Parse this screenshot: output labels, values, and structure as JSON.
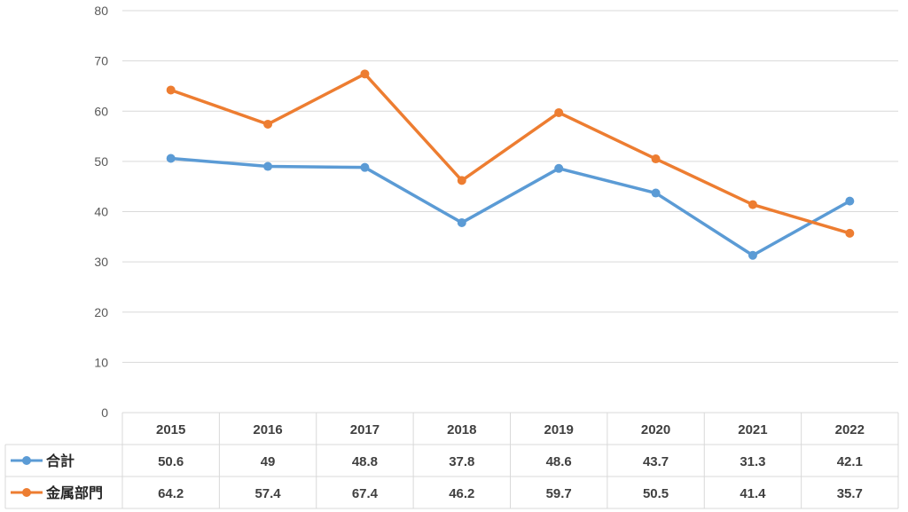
{
  "chart_data": {
    "type": "line",
    "categories": [
      "2015",
      "2016",
      "2017",
      "2018",
      "2019",
      "2020",
      "2021",
      "2022"
    ],
    "series": [
      {
        "name": "合計",
        "values": [
          50.6,
          49,
          48.8,
          37.8,
          48.6,
          43.7,
          31.3,
          42.1
        ],
        "color": "#5B9BD5"
      },
      {
        "name": "金属部門",
        "values": [
          64.2,
          57.4,
          67.4,
          46.2,
          59.7,
          50.5,
          41.4,
          35.7
        ],
        "color": "#ED7D31"
      }
    ],
    "ylim": [
      0,
      80
    ],
    "yticks": [
      "0",
      "10",
      "20",
      "30",
      "40",
      "50",
      "60",
      "70",
      "80"
    ],
    "grid": true,
    "legend": "data-table"
  }
}
